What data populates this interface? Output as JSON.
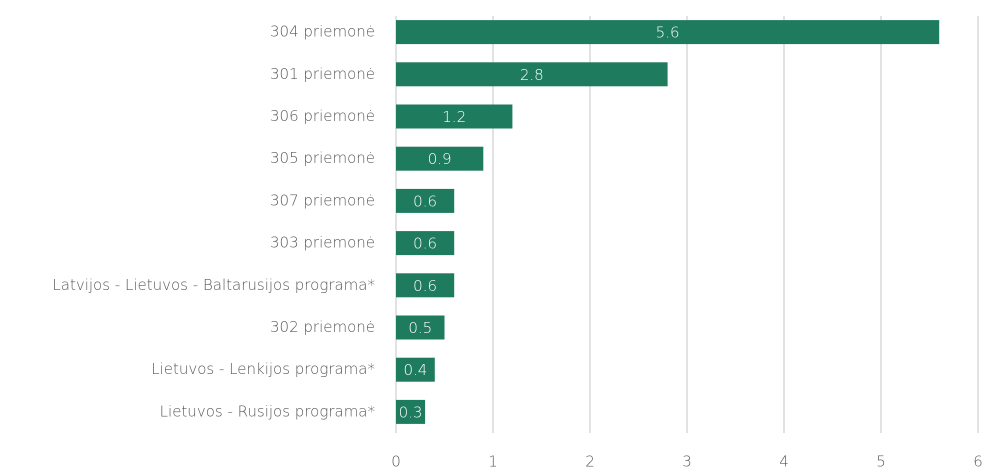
{
  "chart_data": {
    "type": "barh",
    "categories": [
      "304 priemonė",
      "301 priemonė",
      "306 priemonė",
      "305 priemonė",
      "307 priemonė",
      "303 priemonė",
      "Latvijos - Lietuvos - Baltarusijos programa*",
      "302 priemonė",
      "Lietuvos - Lenkijos programa*",
      "Lietuvos - Rusijos programa*"
    ],
    "values": [
      5.6,
      2.8,
      1.2,
      0.9,
      0.6,
      0.6,
      0.6,
      0.5,
      0.4,
      0.3
    ],
    "color": "#1e7b5e",
    "xlim": [
      0,
      6
    ],
    "xticks": [
      0,
      1,
      2,
      3,
      4,
      5,
      6
    ],
    "grid": true
  }
}
